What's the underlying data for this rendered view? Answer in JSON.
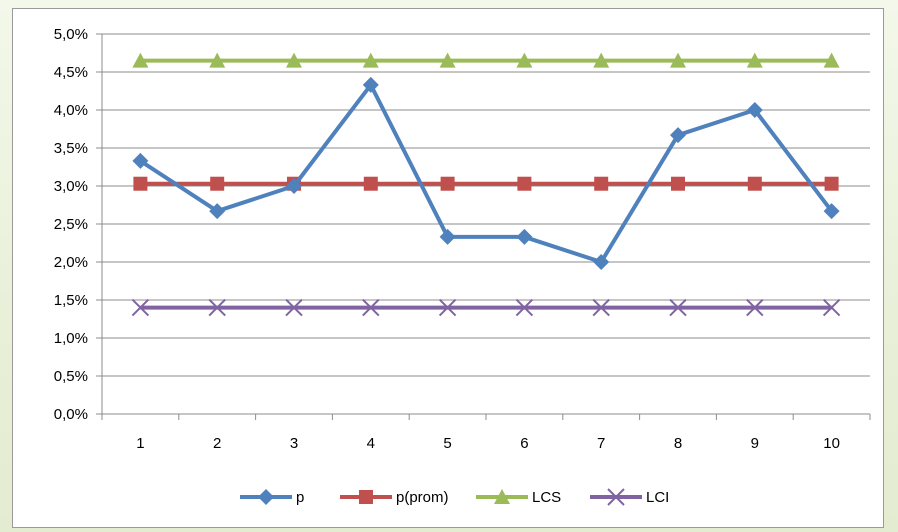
{
  "chart_data": {
    "type": "line",
    "title": "",
    "xlabel": "",
    "ylabel": "",
    "categories": [
      "1",
      "2",
      "3",
      "4",
      "5",
      "6",
      "7",
      "8",
      "9",
      "10"
    ],
    "y_ticks": [
      "0,0%",
      "0,5%",
      "1,0%",
      "1,5%",
      "2,0%",
      "2,5%",
      "3,0%",
      "3,5%",
      "4,0%",
      "4,5%",
      "5,0%"
    ],
    "ylim": [
      0,
      5
    ],
    "y_unit": "%",
    "grid": true,
    "legend_position": "bottom",
    "series": [
      {
        "name": "p",
        "color": "#4f81bd",
        "marker": "diamond",
        "values": [
          3.33,
          2.67,
          3.0,
          4.33,
          2.33,
          2.33,
          2.0,
          3.67,
          4.0,
          2.67
        ]
      },
      {
        "name": "p(prom)",
        "color": "#c0504d",
        "marker": "square",
        "values": [
          3.03,
          3.03,
          3.03,
          3.03,
          3.03,
          3.03,
          3.03,
          3.03,
          3.03,
          3.03
        ]
      },
      {
        "name": "LCS",
        "color": "#9bbb59",
        "marker": "triangle",
        "values": [
          4.65,
          4.65,
          4.65,
          4.65,
          4.65,
          4.65,
          4.65,
          4.65,
          4.65,
          4.65
        ]
      },
      {
        "name": "LCI",
        "color": "#8064a2",
        "marker": "x",
        "values": [
          1.4,
          1.4,
          1.4,
          1.4,
          1.4,
          1.4,
          1.4,
          1.4,
          1.4,
          1.4
        ]
      }
    ]
  }
}
